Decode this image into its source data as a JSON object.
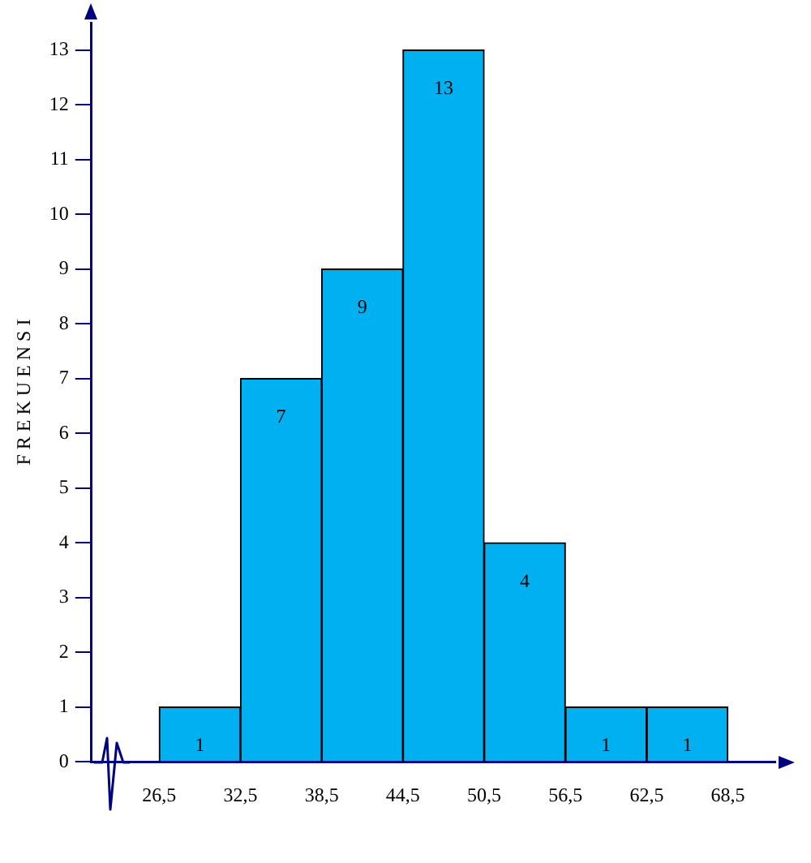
{
  "chart_data": {
    "type": "histogram",
    "ylabel": "F R E K U E N S I",
    "bins": [
      26.5,
      32.5,
      38.5,
      44.5,
      50.5,
      56.5,
      62.5,
      68.5
    ],
    "values": [
      1,
      7,
      9,
      13,
      4,
      1,
      1
    ],
    "color": "#00b0f0",
    "data_labels": true,
    "grid": false,
    "legend": false,
    "xlim": [
      21.5,
      72
    ],
    "ylim": [
      0,
      13.5
    ],
    "xticks": [
      {
        "value": 26.5,
        "label": "26,5"
      },
      {
        "value": 32.5,
        "label": "32,5"
      },
      {
        "value": 38.5,
        "label": "38,5"
      },
      {
        "value": 44.5,
        "label": "44,5"
      },
      {
        "value": 50.5,
        "label": "50,5"
      },
      {
        "value": 56.5,
        "label": "56,5"
      },
      {
        "value": 62.5,
        "label": "62,5"
      },
      {
        "value": 68.5,
        "label": "68,5"
      }
    ],
    "yticks": [
      0,
      1,
      2,
      3,
      4,
      5,
      6,
      7,
      8,
      9,
      10,
      11,
      12,
      13
    ]
  }
}
